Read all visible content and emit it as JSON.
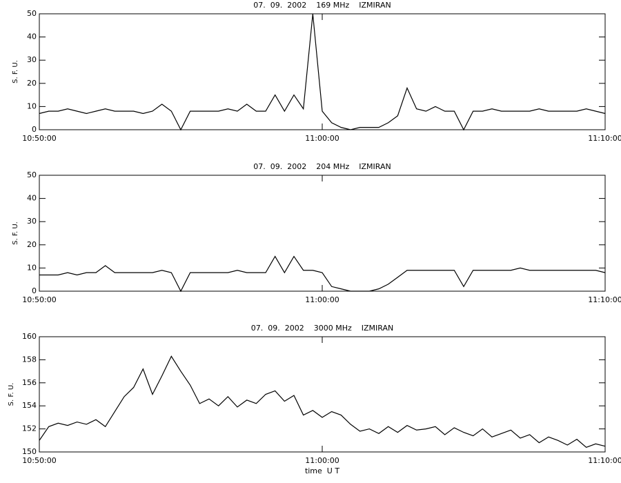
{
  "chart_data": [
    {
      "type": "line",
      "title": "07.  09.  2002    169 MHz    IZMIRAN",
      "ylabel": "S. F. U.",
      "x": [
        "10:50:00",
        "10:50:20",
        "10:50:40",
        "10:51:00",
        "10:51:20",
        "10:51:40",
        "10:52:00",
        "10:52:20",
        "10:52:40",
        "10:53:00",
        "10:53:20",
        "10:53:40",
        "10:54:00",
        "10:54:20",
        "10:54:40",
        "10:55:00",
        "10:55:20",
        "10:55:40",
        "10:56:00",
        "10:56:20",
        "10:56:40",
        "10:57:00",
        "10:57:20",
        "10:57:40",
        "10:58:00",
        "10:58:20",
        "10:58:40",
        "10:59:00",
        "10:59:20",
        "10:59:40",
        "11:00:00",
        "11:00:20",
        "11:00:40",
        "11:01:00",
        "11:01:20",
        "11:01:40",
        "11:02:00",
        "11:02:20",
        "11:02:40",
        "11:03:00",
        "11:03:20",
        "11:03:40",
        "11:04:00",
        "11:04:20",
        "11:04:40",
        "11:05:00",
        "11:05:20",
        "11:05:40",
        "11:06:00",
        "11:06:20",
        "11:06:40",
        "11:07:00",
        "11:07:20",
        "11:07:40",
        "11:08:00",
        "11:08:20",
        "11:08:40",
        "11:09:00",
        "11:09:20",
        "11:09:40",
        "11:10:00"
      ],
      "values": [
        7,
        8,
        8,
        9,
        8,
        7,
        8,
        9,
        8,
        8,
        8,
        7,
        8,
        11,
        8,
        0,
        8,
        8,
        8,
        8,
        9,
        8,
        11,
        8,
        8,
        15,
        8,
        15,
        9,
        50,
        8,
        3,
        1,
        0,
        1,
        1,
        1,
        3,
        6,
        18,
        9,
        8,
        10,
        8,
        8,
        0,
        8,
        8,
        9,
        8,
        8,
        8,
        8,
        9,
        8,
        8,
        8,
        8,
        9,
        8,
        7
      ],
      "color": "#000000",
      "xlim": [
        "10:50:00",
        "11:10:00"
      ],
      "xticks": [
        "10:50:00",
        "11:00:00",
        "11:10:00"
      ],
      "ylim": [
        0,
        50
      ],
      "yticks": [
        0,
        10,
        20,
        30,
        40,
        50
      ]
    },
    {
      "type": "line",
      "title": "07.  09.  2002    204 MHz    IZMIRAN",
      "ylabel": "S. F. U.",
      "x": [
        "10:50:00",
        "10:50:20",
        "10:50:40",
        "10:51:00",
        "10:51:20",
        "10:51:40",
        "10:52:00",
        "10:52:20",
        "10:52:40",
        "10:53:00",
        "10:53:20",
        "10:53:40",
        "10:54:00",
        "10:54:20",
        "10:54:40",
        "10:55:00",
        "10:55:20",
        "10:55:40",
        "10:56:00",
        "10:56:20",
        "10:56:40",
        "10:57:00",
        "10:57:20",
        "10:57:40",
        "10:58:00",
        "10:58:20",
        "10:58:40",
        "10:59:00",
        "10:59:20",
        "10:59:40",
        "11:00:00",
        "11:00:20",
        "11:00:40",
        "11:01:00",
        "11:01:20",
        "11:01:40",
        "11:02:00",
        "11:02:20",
        "11:02:40",
        "11:03:00",
        "11:03:20",
        "11:03:40",
        "11:04:00",
        "11:04:20",
        "11:04:40",
        "11:05:00",
        "11:05:20",
        "11:05:40",
        "11:06:00",
        "11:06:20",
        "11:06:40",
        "11:07:00",
        "11:07:20",
        "11:07:40",
        "11:08:00",
        "11:08:20",
        "11:08:40",
        "11:09:00",
        "11:09:20",
        "11:09:40",
        "11:10:00"
      ],
      "values": [
        7,
        7,
        7,
        8,
        7,
        8,
        8,
        11,
        8,
        8,
        8,
        8,
        8,
        9,
        8,
        0,
        8,
        8,
        8,
        8,
        8,
        9,
        8,
        8,
        8,
        15,
        8,
        15,
        9,
        9,
        8,
        2,
        1,
        0,
        0,
        0,
        1,
        3,
        6,
        9,
        9,
        9,
        9,
        9,
        9,
        2,
        9,
        9,
        9,
        9,
        9,
        10,
        9,
        9,
        9,
        9,
        9,
        9,
        9,
        9,
        8
      ],
      "color": "#000000",
      "xlim": [
        "10:50:00",
        "11:10:00"
      ],
      "xticks": [
        "10:50:00",
        "11:00:00",
        "11:10:00"
      ],
      "ylim": [
        0,
        50
      ],
      "yticks": [
        0,
        10,
        20,
        30,
        40,
        50
      ]
    },
    {
      "type": "line",
      "title": "07.  09.  2002    3000 MHz    IZMIRAN",
      "ylabel": "S. F. U.",
      "xlabel": "time  U T",
      "x": [
        "10:50:00",
        "10:50:20",
        "10:50:40",
        "10:51:00",
        "10:51:20",
        "10:51:40",
        "10:52:00",
        "10:52:20",
        "10:52:40",
        "10:53:00",
        "10:53:20",
        "10:53:40",
        "10:54:00",
        "10:54:20",
        "10:54:40",
        "10:55:00",
        "10:55:20",
        "10:55:40",
        "10:56:00",
        "10:56:20",
        "10:56:40",
        "10:57:00",
        "10:57:20",
        "10:57:40",
        "10:58:00",
        "10:58:20",
        "10:58:40",
        "10:59:00",
        "10:59:20",
        "10:59:40",
        "11:00:00",
        "11:00:20",
        "11:00:40",
        "11:01:00",
        "11:01:20",
        "11:01:40",
        "11:02:00",
        "11:02:20",
        "11:02:40",
        "11:03:00",
        "11:03:20",
        "11:03:40",
        "11:04:00",
        "11:04:20",
        "11:04:40",
        "11:05:00",
        "11:05:20",
        "11:05:40",
        "11:06:00",
        "11:06:20",
        "11:06:40",
        "11:07:00",
        "11:07:20",
        "11:07:40",
        "11:08:00",
        "11:08:20",
        "11:08:40",
        "11:09:00",
        "11:09:20",
        "11:09:40",
        "11:10:00"
      ],
      "values": [
        151,
        152.2,
        152.5,
        152.3,
        152.6,
        152.4,
        152.8,
        152.2,
        153.5,
        154.8,
        155.6,
        157.2,
        155.0,
        156.6,
        158.3,
        157.0,
        155.8,
        154.2,
        154.6,
        154.0,
        154.8,
        153.9,
        154.5,
        154.2,
        155.0,
        155.3,
        154.4,
        154.9,
        153.2,
        153.6,
        153.0,
        153.5,
        153.2,
        152.4,
        151.8,
        152.0,
        151.6,
        152.2,
        151.7,
        152.3,
        151.9,
        152.0,
        152.2,
        151.5,
        152.1,
        151.7,
        151.4,
        152.0,
        151.3,
        151.6,
        151.9,
        151.2,
        151.5,
        150.8,
        151.3,
        151.0,
        150.6,
        151.1,
        150.4,
        150.7,
        150.5
      ],
      "color": "#000000",
      "xlim": [
        "10:50:00",
        "11:10:00"
      ],
      "xticks": [
        "10:50:00",
        "11:00:00",
        "11:10:00"
      ],
      "ylim": [
        150,
        160
      ],
      "yticks": [
        150,
        152,
        154,
        156,
        158,
        160
      ]
    }
  ]
}
